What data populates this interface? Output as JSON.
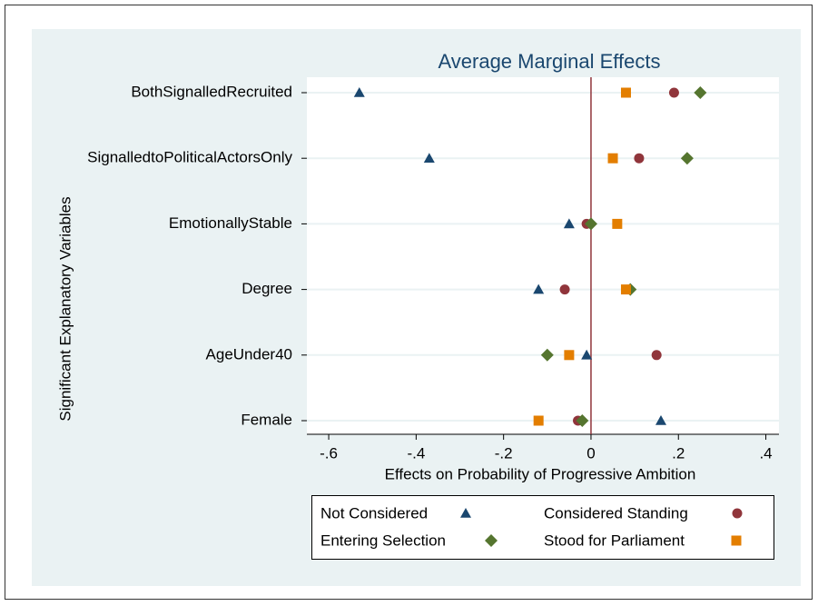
{
  "chart_data": {
    "type": "scatter",
    "title": "Average Marginal Effects",
    "x_label": "Effects on Probability of Progressive Ambition",
    "y_label": "Significant Explanatory Variables",
    "categories": [
      "BothSignalledRecruited",
      "SignalledtoPoliticalActorsOnly",
      "EmotionallyStable",
      "Degree",
      "AgeUnder40",
      "Female"
    ],
    "xlim": [
      -0.65,
      0.43
    ],
    "xticks": [
      {
        "value": -0.6,
        "label": "-.6"
      },
      {
        "value": -0.4,
        "label": "-.4"
      },
      {
        "value": -0.2,
        "label": "-.2"
      },
      0,
      {
        "value": 0.2,
        "label": ".2"
      },
      {
        "value": 0.4,
        "label": ".4"
      }
    ],
    "xline": 0,
    "grid": true,
    "series": [
      {
        "name": "Not Considered",
        "color": "#1a476f",
        "marker": "triangle",
        "values": [
          -0.53,
          -0.37,
          -0.05,
          -0.12,
          -0.01,
          0.16
        ]
      },
      {
        "name": "Considered Standing",
        "color": "#90353b",
        "marker": "circle",
        "values": [
          0.19,
          0.11,
          -0.01,
          -0.06,
          0.15,
          -0.03
        ]
      },
      {
        "name": "Entering Selection",
        "color": "#55752f",
        "marker": "diamond",
        "values": [
          0.25,
          0.22,
          0,
          0.09,
          -0.1,
          -0.02
        ]
      },
      {
        "name": "Stood for Parliament",
        "color": "#e37e00",
        "marker": "square",
        "values": [
          0.08,
          0.05,
          0.06,
          0.08,
          -0.05,
          -0.12
        ]
      }
    ]
  }
}
